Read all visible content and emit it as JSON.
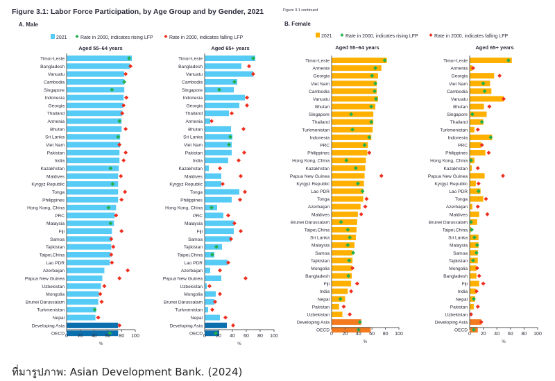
{
  "male": {
    "figure_title": "Figure 3.1: Labor Force Participation, by Age Group and by Gender, 2021",
    "panel_label": "A. Male",
    "legend": {
      "bar": "2021",
      "rising": "Rate in 2000, indicates rising LFP",
      "falling": "Rate in 2000, indicates falling LFP"
    }
  },
  "female": {
    "continued": "Figure 3.1 continued",
    "panel_label": "B. Female",
    "legend": {
      "bar": "2021",
      "rising": "Rate in 2000, indicates rising LFP",
      "falling": "Rate in 2000, indicates falling LFP"
    }
  },
  "colors": {
    "male_bar": "#55CBF5",
    "male_aggregate_bar": "#0B6FAE",
    "female_bar": "#FFB000",
    "female_aggregate_bar": "#F47A20",
    "rising": "#22B04B",
    "falling": "#EE2E1E"
  },
  "source": "ที่มารูปภาพ: Asian Development Bank. (2024)",
  "chart_data": [
    {
      "type": "bar",
      "orientation": "horizontal",
      "gender": "male",
      "title": "Aged 55–64 years",
      "xlabel": "%",
      "xlim": [
        0,
        100
      ],
      "xticks": [
        0,
        20,
        40,
        60,
        80,
        100
      ],
      "categories": [
        "Timor-Leste",
        "Bangladesh",
        "Vanuatu",
        "Cambodia",
        "Singapore",
        "Indonesia",
        "Georgia",
        "Thailand",
        "Armenia",
        "Bhutan",
        "Sri Lanka",
        "Viet Nam",
        "Pakistan",
        "India",
        "Kazakhstan",
        "Maldives",
        "Kyrgyz Republic",
        "Tonga",
        "Philippines",
        "Hong Kong, China",
        "PRC",
        "Malaysia",
        "Fiji",
        "Samoa",
        "Tajikistan",
        "Taipei,China",
        "Lao PDR",
        "Azerbaijan",
        "Papua New Guinea",
        "Uzbekistan",
        "Mongolia",
        "Brunei Darussalam",
        "Turkmenistan",
        "Nepal",
        "Developing Asia",
        "OECD"
      ],
      "series": [
        {
          "name": "2021",
          "values": [
            95,
            92,
            84,
            84,
            84,
            83,
            82,
            81,
            80,
            80,
            78,
            78,
            77,
            77,
            76,
            75,
            75,
            75,
            75,
            72,
            70,
            69,
            66,
            65,
            65,
            64,
            63,
            55,
            52,
            50,
            47,
            46,
            43,
            42,
            75,
            75
          ]
        },
        {
          "name": "Rate in 2000",
          "values": [
            91,
            93,
            86,
            84,
            66,
            87,
            83,
            81,
            77,
            86,
            75,
            77,
            86,
            83,
            64,
            79,
            67,
            85,
            80,
            61,
            72,
            64,
            80,
            65,
            68,
            65,
            66,
            89,
            77,
            55,
            49,
            51,
            41,
            46,
            77,
            63
          ],
          "trend": [
            "rising",
            "falling",
            "falling",
            "rising",
            "rising",
            "falling",
            "falling",
            "falling",
            "rising",
            "falling",
            "rising",
            "falling",
            "falling",
            "falling",
            "rising",
            "falling",
            "rising",
            "falling",
            "falling",
            "rising",
            "falling",
            "rising",
            "falling",
            "falling",
            "falling",
            "falling",
            "falling",
            "falling",
            "falling",
            "falling",
            "falling",
            "falling",
            "rising",
            "falling",
            "falling",
            "rising"
          ]
        }
      ]
    },
    {
      "type": "bar",
      "orientation": "horizontal",
      "gender": "male",
      "title": "Aged 65+ years",
      "xlabel": "%",
      "xlim": [
        0,
        100
      ],
      "xticks": [
        0,
        20,
        40,
        60,
        80,
        100
      ],
      "categories": [
        "Timor-Leste",
        "Bangladesh",
        "Vanuatu",
        "Cambodia",
        "Singapore",
        "Indonesia",
        "Georgia",
        "Thailand",
        "Armenia",
        "Bhutan",
        "Sri Lanka",
        "Viet Nam",
        "Pakistan",
        "India",
        "Kazakhstan",
        "Maldives",
        "Kyrgyz Republic",
        "Tonga",
        "Philippines",
        "Hong Kong, China",
        "PRC",
        "Malaysia",
        "Fiji",
        "Samoa",
        "Tajikistan",
        "Taipei,China",
        "Lao PDR",
        "Azerbaijan",
        "Papua New Guinea",
        "Uzbekistan",
        "Mongolia",
        "Brunei Darussalam",
        "Turkmenistan",
        "Nepal",
        "Developing Asia",
        "OECD"
      ],
      "series": [
        {
          "name": "2021",
          "values": [
            73,
            53,
            70,
            47,
            42,
            58,
            50,
            35,
            8,
            38,
            40,
            39,
            39,
            34,
            6,
            24,
            24,
            50,
            39,
            18,
            27,
            42,
            42,
            38,
            25,
            14,
            33,
            8,
            24,
            3,
            16,
            14,
            5,
            22,
            32,
            21
          ]
        },
        {
          "name": "Rate in 2000",
          "values": [
            70,
            64,
            70,
            43,
            21,
            61,
            61,
            39,
            10,
            56,
            37,
            35,
            57,
            49,
            22,
            52,
            26,
            58,
            51,
            10,
            34,
            43,
            52,
            38,
            17,
            11,
            34,
            22,
            59,
            7,
            22,
            15,
            11,
            30,
            41,
            16
          ],
          "trend": [
            "rising",
            "falling",
            "falling",
            "rising",
            "rising",
            "falling",
            "falling",
            "falling",
            "falling",
            "falling",
            "rising",
            "rising",
            "falling",
            "falling",
            "falling",
            "falling",
            "falling",
            "falling",
            "falling",
            "rising",
            "falling",
            "falling",
            "falling",
            "falling",
            "rising",
            "rising",
            "falling",
            "falling",
            "falling",
            "falling",
            "falling",
            "falling",
            "falling",
            "falling",
            "falling",
            "rising"
          ]
        }
      ]
    },
    {
      "type": "bar",
      "orientation": "horizontal",
      "gender": "female",
      "title": "Aged 55–64 years",
      "xlabel": "%",
      "xlim": [
        0,
        100
      ],
      "xticks": [
        0,
        20,
        40,
        60,
        80,
        100
      ],
      "categories": [
        "Timor-Leste",
        "Armenia",
        "Georgia",
        "Viet Nam",
        "Cambodia",
        "Vanuatu",
        "Bhutan",
        "Singapore",
        "Thailand",
        "Turkmenistan",
        "Indonesia",
        "PRC",
        "Philippines",
        "Hong Kong, China",
        "Kazakhstan",
        "Papua New Guinea",
        "Kyrgyz Republic",
        "Lao PDR",
        "Tonga",
        "Azerbaijan",
        "Maldives",
        "Brunei Darussalam",
        "Taipei,China",
        "Sri Lanka",
        "Malaysia",
        "Samoa",
        "Tajikistan",
        "Mongolia",
        "Bangladesh",
        "Fiji",
        "India",
        "Nepal",
        "Pakistan",
        "Uzbekistan",
        "Developing Asia",
        "OECD"
      ],
      "series": [
        {
          "name": "2021",
          "values": [
            82,
            74,
            69,
            67,
            67,
            69,
            65,
            62,
            62,
            61,
            59,
            54,
            53,
            51,
            50,
            49,
            48,
            47,
            47,
            43,
            39,
            38,
            37,
            36,
            34,
            31,
            31,
            30,
            30,
            29,
            24,
            20,
            11,
            16,
            44,
            58
          ]
        },
        {
          "name": "Rate in 2000",
          "values": [
            79,
            65,
            60,
            65,
            64,
            66,
            59,
            29,
            59,
            31,
            56,
            49,
            56,
            22,
            36,
            74,
            39,
            46,
            52,
            50,
            44,
            14,
            24,
            27,
            24,
            32,
            26,
            31,
            25,
            38,
            29,
            13,
            18,
            27,
            42,
            40
          ],
          "trend": [
            "rising",
            "rising",
            "rising",
            "rising",
            "rising",
            "rising",
            "rising",
            "rising",
            "rising",
            "rising",
            "rising",
            "rising",
            "falling",
            "rising",
            "rising",
            "falling",
            "rising",
            "rising",
            "falling",
            "falling",
            "falling",
            "rising",
            "rising",
            "rising",
            "rising",
            "rising",
            "rising",
            "falling",
            "rising",
            "falling",
            "falling",
            "rising",
            "falling",
            "falling",
            "rising",
            "rising"
          ]
        }
      ]
    },
    {
      "type": "bar",
      "orientation": "horizontal",
      "gender": "female",
      "title": "Aged 65+ years",
      "xlabel": "%",
      "xlim": [
        0,
        100
      ],
      "xticks": [
        0,
        20,
        40,
        60,
        80,
        100
      ],
      "categories": [
        "Timor-Leste",
        "Armenia",
        "Georgia",
        "Viet Nam",
        "Cambodia",
        "Vanuatu",
        "Bhutan",
        "Singapore",
        "Thailand",
        "Turkmenistan",
        "Indonesia",
        "PRC",
        "Philippines",
        "Hong Kong, China",
        "Kazakhstan",
        "Papua New Guinea",
        "Kyrgyz Republic",
        "Lao PDR",
        "Tonga",
        "Azerbaijan",
        "Maldives",
        "Brunei Darussalam",
        "Taipei,China",
        "Sri Lanka",
        "Malaysia",
        "Samoa",
        "Tajikistan",
        "Mongolia",
        "Bangladesh",
        "Fiji",
        "India",
        "Nepal",
        "Pakistan",
        "Uzbekistan",
        "Developing Asia",
        "OECD"
      ],
      "series": [
        {
          "name": "2021",
          "values": [
            62,
            4,
            36,
            30,
            32,
            50,
            21,
            25,
            20,
            7,
            33,
            17,
            23,
            7,
            3,
            22,
            9,
            16,
            20,
            4,
            14,
            11,
            2,
            13,
            13,
            12,
            12,
            10,
            10,
            14,
            9,
            8,
            6,
            0,
            17,
            12
          ]
        },
        {
          "name": "Rate in 2000",
          "values": [
            57,
            5,
            44,
            20,
            22,
            50,
            29,
            4,
            18,
            12,
            31,
            18,
            28,
            2,
            12,
            49,
            13,
            13,
            24,
            12,
            26,
            2,
            3,
            7,
            11,
            10,
            5,
            11,
            14,
            20,
            10,
            6,
            12,
            2,
            17,
            6
          ],
          "trend": [
            "rising",
            "falling",
            "falling",
            "rising",
            "rising",
            "falling",
            "falling",
            "rising",
            "rising",
            "falling",
            "rising",
            "falling",
            "falling",
            "rising",
            "falling",
            "falling",
            "falling",
            "rising",
            "falling",
            "falling",
            "falling",
            "rising",
            "rising",
            "rising",
            "rising",
            "rising",
            "rising",
            "falling",
            "falling",
            "falling",
            "falling",
            "rising",
            "falling",
            "falling",
            "falling",
            "rising"
          ]
        }
      ]
    }
  ]
}
